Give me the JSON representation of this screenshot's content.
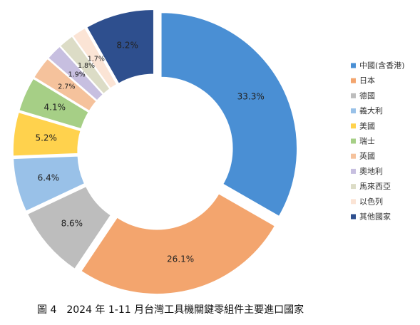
{
  "chart_data": {
    "type": "pie",
    "variant": "donut",
    "categories": [
      "中國(含香港)",
      "日本",
      "德國",
      "義大利",
      "美國",
      "瑞士",
      "英國",
      "奧地利",
      "馬來西亞",
      "以色列",
      "其他國家"
    ],
    "values": [
      33.3,
      26.1,
      8.6,
      6.4,
      5.2,
      4.1,
      2.7,
      1.9,
      1.8,
      1.7,
      8.2
    ],
    "value_labels": [
      "33.3%",
      "26.1%",
      "8.6%",
      "6.4%",
      "5.2%",
      "4.1%",
      "2.7%",
      "1.9%",
      "1.8%",
      "1.7%",
      "8.2%"
    ],
    "colors": [
      "#4a8fd4",
      "#f3a56e",
      "#bdbdbd",
      "#99c1e8",
      "#ffd24d",
      "#a6cf86",
      "#f5c29c",
      "#c7bfe0",
      "#dcdcc6",
      "#fbe4d5",
      "#2e4f8e"
    ],
    "legend_position": "right",
    "exploded": true,
    "start": "top",
    "direction": "clockwise"
  },
  "caption": "圖 4　2024 年 1-11 月台灣工具機關鍵零組件主要進口國家"
}
